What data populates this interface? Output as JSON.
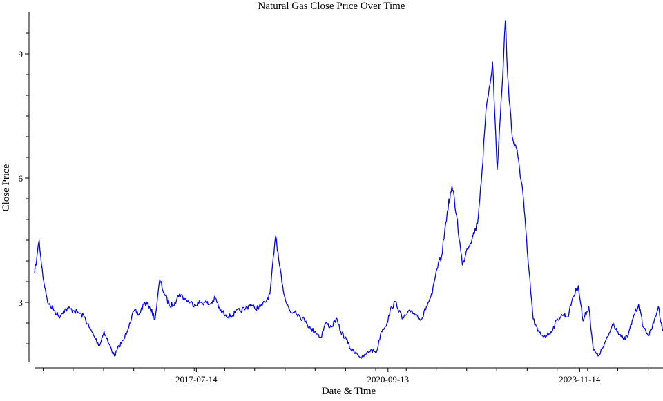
{
  "chart_data": {
    "type": "line",
    "title": "Natural Gas Close Price Over Time",
    "xlabel": "Date & Time",
    "ylabel": "Close Price",
    "xlim": [
      "2014-11-10",
      "2025-03-31"
    ],
    "ylim": [
      1.55,
      10.0
    ],
    "x_ticks": [
      "2017-07-14",
      "2020-09-13",
      "2023-11-14"
    ],
    "y_ticks": [
      3,
      6,
      9
    ],
    "grid": false,
    "legend": "none",
    "line_color": "#0000ff",
    "series": [
      {
        "x": [
          "2014-11-10",
          "2014-11-24",
          "2014-12-08",
          "2014-12-22",
          "2015-01-05",
          "2015-02-02",
          "2015-03-02",
          "2015-04-06",
          "2015-05-04",
          "2015-06-01",
          "2015-07-06",
          "2015-08-03",
          "2015-09-07",
          "2015-10-05",
          "2015-11-02",
          "2015-12-07",
          "2016-01-04",
          "2016-02-01",
          "2016-03-07",
          "2016-04-04",
          "2016-05-02",
          "2016-06-06",
          "2016-07-04",
          "2016-08-01",
          "2016-09-05",
          "2016-10-03",
          "2016-11-07",
          "2016-12-05",
          "2017-01-02",
          "2017-02-06",
          "2017-03-06",
          "2017-04-03",
          "2017-05-01",
          "2017-06-05",
          "2017-07-03",
          "2017-08-07",
          "2017-09-04",
          "2017-10-02",
          "2017-11-06",
          "2017-12-04",
          "2018-01-08",
          "2018-02-05",
          "2018-03-05",
          "2018-04-02",
          "2018-05-07",
          "2018-06-04",
          "2018-07-02",
          "2018-08-06",
          "2018-09-03",
          "2018-10-01",
          "2018-11-05",
          "2018-11-19",
          "2018-12-03",
          "2018-12-17",
          "2019-01-07",
          "2019-02-04",
          "2019-03-04",
          "2019-04-01",
          "2019-05-06",
          "2019-06-03",
          "2019-07-01",
          "2019-08-05",
          "2019-09-02",
          "2019-10-07",
          "2019-11-04",
          "2019-12-02",
          "2020-01-06",
          "2020-02-03",
          "2020-03-02",
          "2020-04-06",
          "2020-05-04",
          "2020-06-01",
          "2020-07-06",
          "2020-08-03",
          "2020-09-07",
          "2020-10-05",
          "2020-11-02",
          "2020-12-07",
          "2021-01-04",
          "2021-02-01",
          "2021-03-01",
          "2021-04-05",
          "2021-05-03",
          "2021-06-07",
          "2021-07-05",
          "2021-08-02",
          "2021-09-06",
          "2021-10-04",
          "2021-11-01",
          "2021-12-06",
          "2022-01-03",
          "2022-02-07",
          "2022-03-07",
          "2022-04-04",
          "2022-05-02",
          "2022-06-06",
          "2022-07-04",
          "2022-08-01",
          "2022-08-22",
          "2022-09-05",
          "2022-10-03",
          "2022-11-07",
          "2022-12-05",
          "2023-01-02",
          "2023-02-06",
          "2023-03-06",
          "2023-04-03",
          "2023-05-01",
          "2023-06-05",
          "2023-07-03",
          "2023-08-07",
          "2023-09-04",
          "2023-10-02",
          "2023-11-06",
          "2023-12-04",
          "2024-01-08",
          "2024-02-05",
          "2024-03-04",
          "2024-04-01",
          "2024-05-06",
          "2024-06-03",
          "2024-07-01",
          "2024-08-05",
          "2024-09-02",
          "2024-10-07",
          "2024-11-04",
          "2024-12-02",
          "2025-01-06",
          "2025-02-03",
          "2025-03-03",
          "2025-03-31"
        ],
        "y": [
          3.7,
          4.1,
          4.5,
          3.9,
          3.5,
          2.95,
          2.85,
          2.65,
          2.8,
          2.85,
          2.8,
          2.75,
          2.65,
          2.4,
          2.2,
          1.95,
          2.3,
          2.0,
          1.7,
          1.95,
          2.1,
          2.5,
          2.8,
          2.7,
          3.0,
          2.9,
          2.6,
          3.55,
          3.2,
          2.9,
          3.0,
          3.2,
          3.1,
          3.0,
          2.95,
          3.0,
          3.0,
          2.95,
          3.1,
          2.8,
          2.7,
          2.65,
          2.75,
          2.8,
          2.85,
          2.95,
          2.85,
          2.9,
          3.0,
          3.2,
          4.6,
          4.2,
          3.8,
          3.4,
          3.0,
          2.75,
          2.8,
          2.65,
          2.55,
          2.35,
          2.3,
          2.15,
          2.5,
          2.4,
          2.6,
          2.3,
          2.1,
          1.85,
          1.8,
          1.65,
          1.75,
          1.85,
          1.8,
          2.3,
          2.5,
          2.9,
          3.0,
          2.6,
          2.7,
          2.8,
          2.7,
          2.6,
          2.9,
          3.2,
          3.8,
          4.1,
          5.2,
          5.8,
          5.1,
          3.9,
          4.3,
          4.6,
          4.9,
          6.2,
          7.8,
          8.8,
          6.2,
          8.1,
          9.8,
          8.5,
          7.0,
          6.5,
          5.7,
          4.2,
          2.6,
          2.3,
          2.2,
          2.2,
          2.35,
          2.6,
          2.7,
          2.65,
          3.1,
          3.4,
          2.55,
          2.9,
          1.85,
          1.7,
          1.9,
          2.2,
          2.5,
          2.3,
          2.1,
          2.2,
          2.7,
          2.95,
          2.4,
          2.2,
          2.5,
          2.9,
          2.3
        ]
      }
    ]
  }
}
